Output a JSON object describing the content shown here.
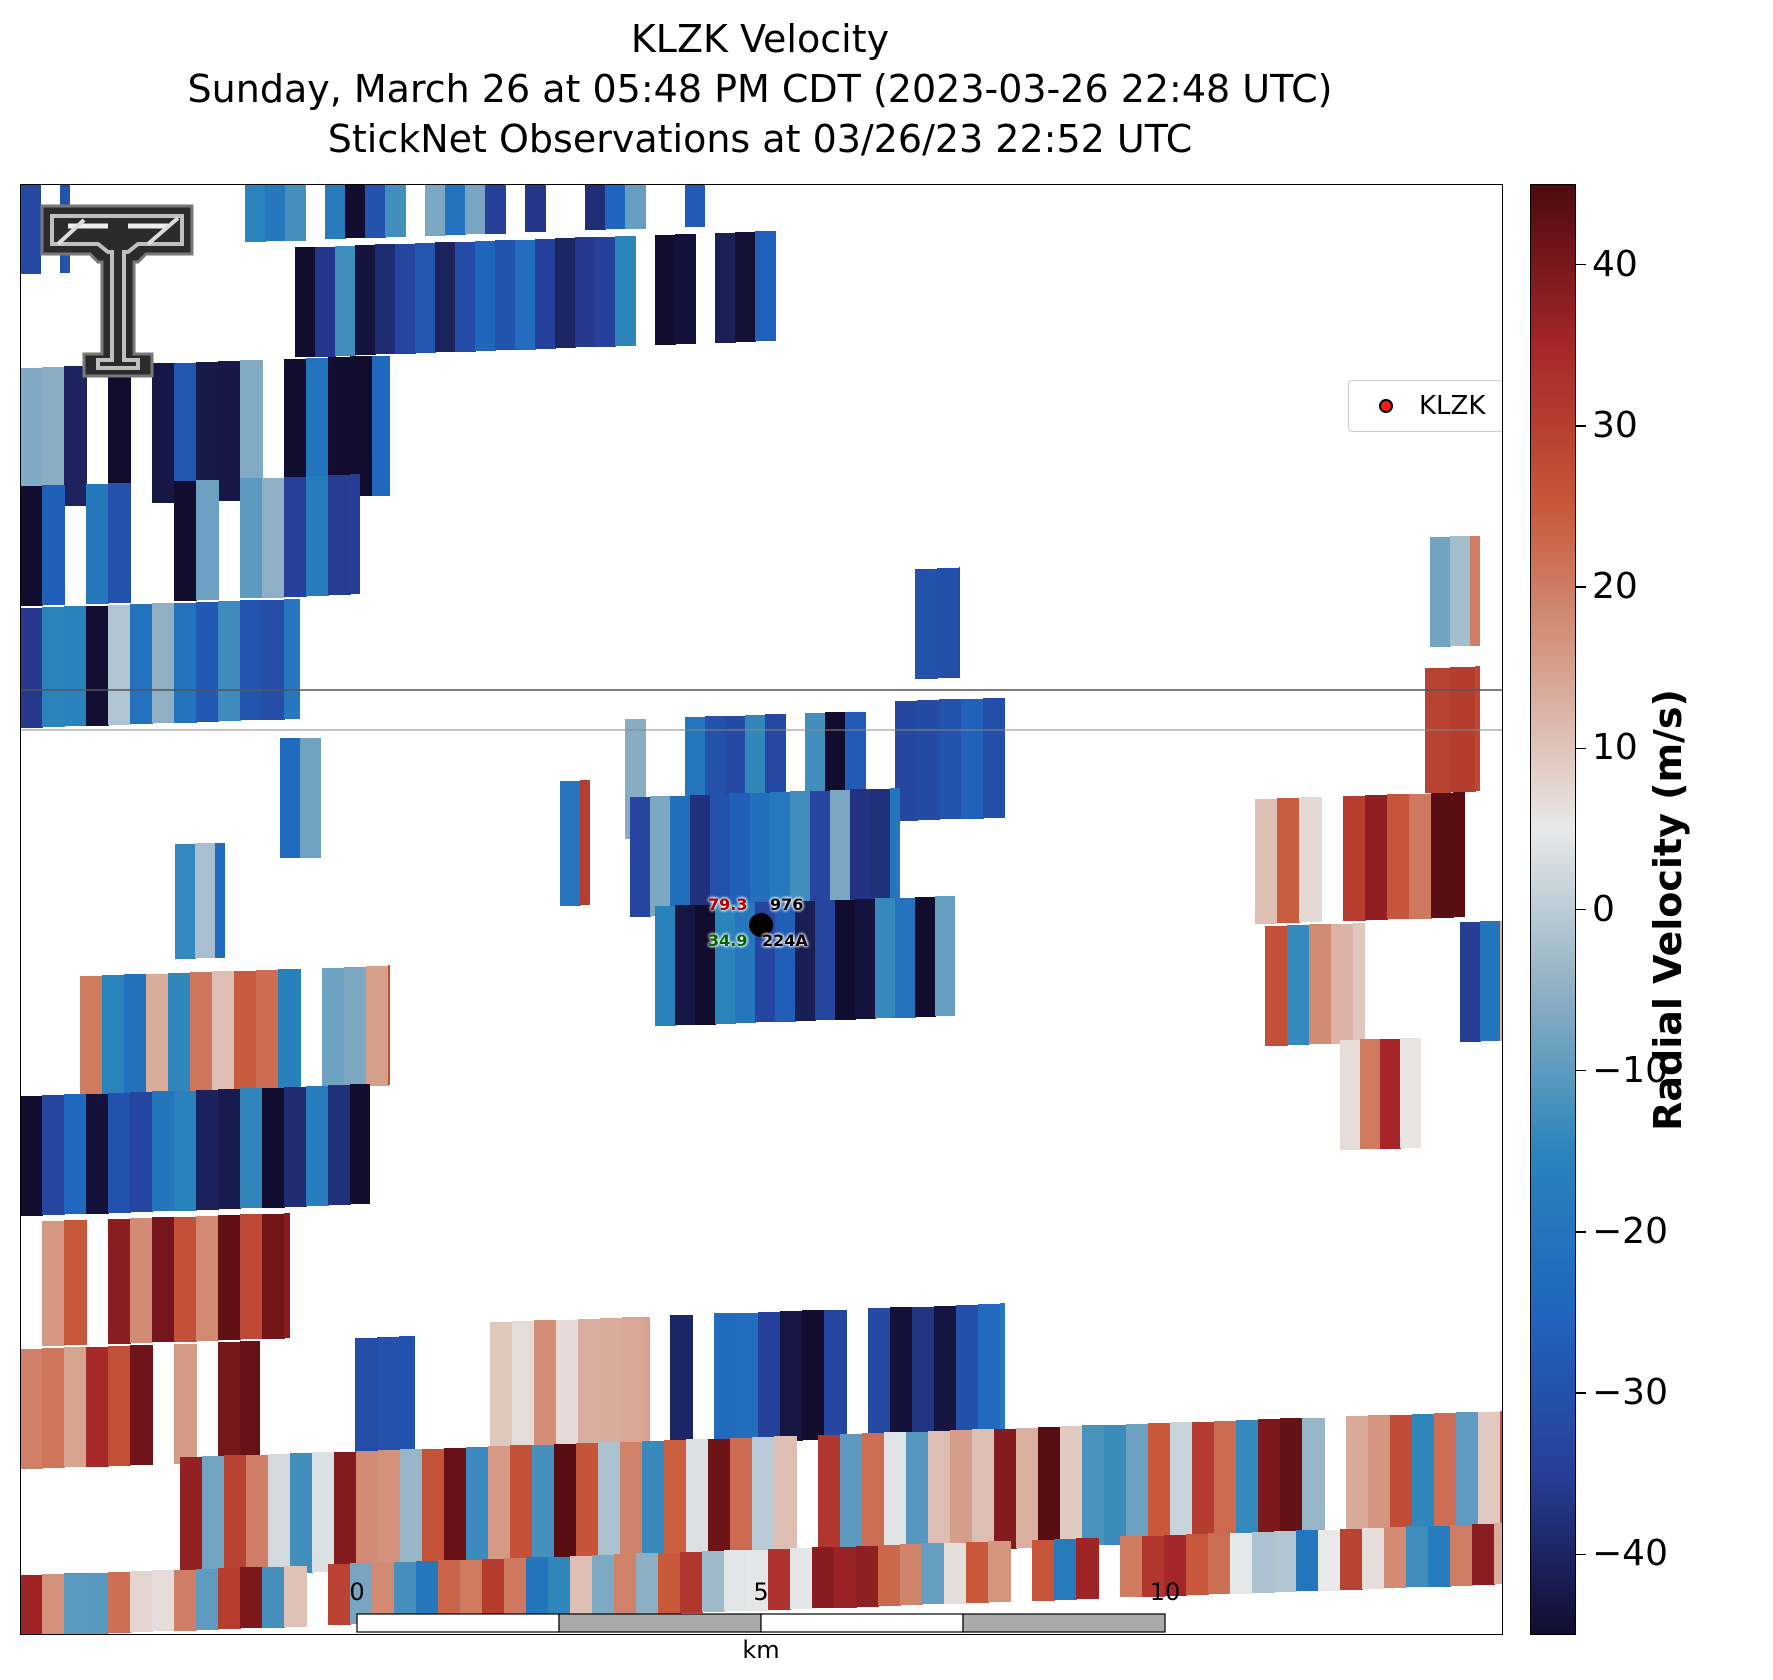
{
  "title": {
    "line1": "KLZK Velocity",
    "line2": "Sunday, March 26 at 05:48 PM CDT (2023-03-26 22:48 UTC)",
    "line3": "StickNet Observations at 03/26/23 22:52 UTC"
  },
  "legend": {
    "label": "KLZK",
    "marker_color": "#ff1a1a"
  },
  "colorbar": {
    "label": "Radial Velocity (m/s)",
    "vmin": -45,
    "vmax": 45,
    "ticks": [
      40,
      30,
      20,
      10,
      0,
      -10,
      -20,
      -30,
      -40
    ],
    "tick_labels": [
      "40",
      "30",
      "20",
      "10",
      "0",
      "−10",
      "−20",
      "−30",
      "−40"
    ],
    "colormap": [
      "#120c2e",
      "#273e98",
      "#1f65bf",
      "#2a84bb",
      "#8fb0c4",
      "#e9e9e9",
      "#d6a08c",
      "#c8583a",
      "#a52628",
      "#4d0a10"
    ]
  },
  "scale_bar": {
    "ticks": [
      "0",
      "5",
      "10"
    ],
    "unit": "km"
  },
  "station": {
    "id": "976",
    "name": "224A",
    "temperature": "79.3",
    "dewpoint": "34.9",
    "temperature_color": "#b20000",
    "dewpoint_color": "#006400"
  },
  "logo": "texas-tech-double-t-logo"
}
